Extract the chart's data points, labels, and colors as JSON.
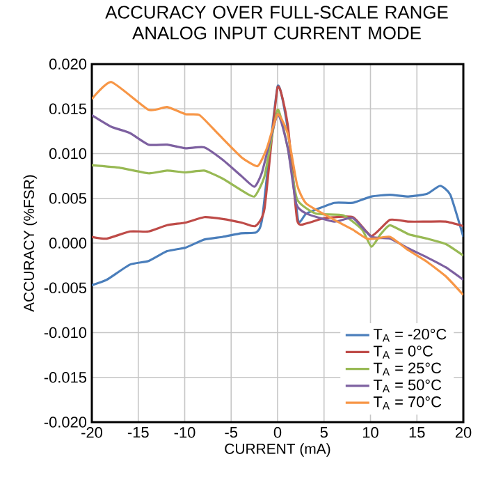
{
  "chart_data": {
    "type": "line",
    "title": "ACCURACY OVER FULL-SCALE RANGE\nANALOG INPUT CURRENT MODE",
    "xlabel": "CURRENT (mA)",
    "ylabel": "ACCURACY (%FSR)",
    "xlim": [
      -20,
      20
    ],
    "xticks": [
      -20,
      -15,
      -10,
      -5,
      0,
      5,
      10,
      15,
      20
    ],
    "ylim": [
      -0.02,
      0.02
    ],
    "yticks": [
      {
        "value": -0.02,
        "label": "-0.020"
      },
      {
        "value": -0.015,
        "label": "-0.015"
      },
      {
        "value": -0.01,
        "label": "-0.010"
      },
      {
        "value": -0.005,
        "label": "-0.005"
      },
      {
        "value": 0,
        "label": "0.000"
      },
      {
        "value": 0.005,
        "label": "0.005"
      },
      {
        "value": 0.01,
        "label": "0.010"
      },
      {
        "value": 0.015,
        "label": "0.015"
      },
      {
        "value": 0.02,
        "label": "0.020"
      }
    ],
    "grid": true,
    "legend": "bottom right",
    "marker": "none",
    "line_style": "solid",
    "series": [
      {
        "name": "T$_{A}$ = -20°C",
        "color": "#4a7ebb",
        "x": [
          -20,
          -18.4,
          -15.9,
          -13.9,
          -11.9,
          -9.9,
          -7.9,
          -5.9,
          -3.9,
          -2.3,
          -1.65,
          0,
          1.1,
          2.2,
          3.1,
          6.1,
          8.1,
          10.1,
          12.1,
          14.1,
          16.1,
          17.5,
          18.6,
          20
        ],
        "values": [
          -0.0047,
          -0.0041,
          -0.0024,
          -0.002,
          -0.0009,
          -0.0005,
          0.0004,
          0.0007,
          0.0011,
          0.0012,
          0.0028,
          0.0175,
          0.0127,
          0.0026,
          0.0033,
          0.0045,
          0.0045,
          0.0052,
          0.0054,
          0.0052,
          0.0055,
          0.0064,
          0.0054,
          0.0007
        ]
      },
      {
        "name": "T$_{A}$ = 0°C",
        "color": "#be4b48",
        "x": [
          -20,
          -18.4,
          -15.9,
          -13.9,
          -11.9,
          -9.9,
          -7.9,
          -5.9,
          -3.9,
          -2.4,
          -1.4,
          0,
          1.1,
          2.1,
          3.1,
          5.1,
          8.1,
          10.1,
          12.1,
          14.1,
          16.1,
          18.1,
          20
        ],
        "values": [
          0.0007,
          0.0005,
          0.0013,
          0.0013,
          0.002,
          0.0023,
          0.0029,
          0.0027,
          0.0023,
          0.0019,
          0.0039,
          0.0174,
          0.0132,
          0.0026,
          0.0022,
          0.0028,
          0.0029,
          0.0008,
          0.0026,
          0.0024,
          0.0024,
          0.0024,
          0.0019
        ]
      },
      {
        "name": "T$_{A}$ = 25°C",
        "color": "#98b954",
        "x": [
          -20,
          -16.9,
          -13.9,
          -11.9,
          -9.9,
          -7.9,
          -5.9,
          -3.9,
          -2.5,
          -1.4,
          0,
          1.1,
          2.1,
          4.1,
          7.1,
          9.1,
          10.1,
          11.1,
          12.1,
          14.1,
          16.1,
          18.1,
          20
        ],
        "values": [
          0.0087,
          0.0084,
          0.0078,
          0.0081,
          0.0079,
          0.0081,
          0.0072,
          0.0059,
          0.0052,
          0.0075,
          0.0149,
          0.0106,
          0.0049,
          0.0033,
          0.0031,
          0.0015,
          -0.0004,
          0.001,
          0.002,
          0.001,
          0.0005,
          -0.0001,
          -0.0014
        ]
      },
      {
        "name": "T$_{A}$ = 50°C",
        "color": "#7d60a0",
        "x": [
          -20,
          -17.9,
          -15.9,
          -13.9,
          -11.9,
          -9.9,
          -7.9,
          -5.9,
          -3.9,
          -2.5,
          -1.65,
          0,
          1.1,
          2,
          3.1,
          6.1,
          8.1,
          10.1,
          12.1,
          14.1,
          16.1,
          18.1,
          20
        ],
        "values": [
          0.0143,
          0.013,
          0.0123,
          0.011,
          0.011,
          0.0106,
          0.0107,
          0.0093,
          0.0075,
          0.0063,
          0.008,
          0.0144,
          0.0106,
          0.0044,
          0.0033,
          0.0024,
          0.0028,
          0.0007,
          0.0005,
          -0.0006,
          -0.0016,
          -0.0027,
          -0.0041
        ]
      },
      {
        "name": "T$_{A}$ = 70°C",
        "color": "#f79646",
        "x": [
          -20,
          -17.9,
          -13.9,
          -11.9,
          -9.9,
          -8.4,
          -6.4,
          -3.9,
          -2.15,
          -1.15,
          0,
          1.1,
          2.1,
          3.1,
          6.1,
          8.1,
          9.6,
          10.6,
          12.1,
          14.1,
          16.1,
          18.1,
          20
        ],
        "values": [
          0.0161,
          0.018,
          0.0149,
          0.0152,
          0.0144,
          0.0143,
          0.0122,
          0.0096,
          0.0086,
          0.0106,
          0.0144,
          0.0122,
          0.0065,
          0.0044,
          0.0026,
          0.0015,
          0.0005,
          0.0005,
          0.0007,
          -0.0008,
          -0.0021,
          -0.0037,
          -0.0058
        ]
      }
    ]
  }
}
